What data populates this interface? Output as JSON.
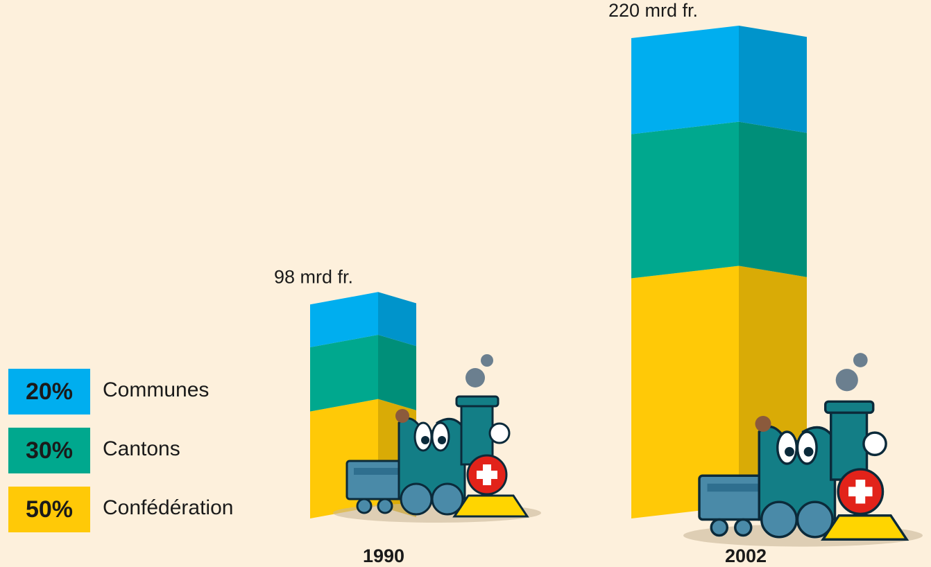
{
  "chart_data": {
    "type": "stacked-share-bar",
    "categories": [
      "1990",
      "2002"
    ],
    "totals": [
      98,
      220
    ],
    "total_labels": [
      "98 mrd fr.",
      "220 mrd fr."
    ],
    "series": [
      {
        "name": "Communes",
        "color": "#00aeef",
        "share": 20,
        "share_label": "20%"
      },
      {
        "name": "Cantons",
        "color": "#00a88e",
        "share": 30,
        "share_label": "30%"
      },
      {
        "name": "Confédération",
        "color": "#ffc907",
        "share": 50,
        "share_label": "50%"
      }
    ]
  }
}
